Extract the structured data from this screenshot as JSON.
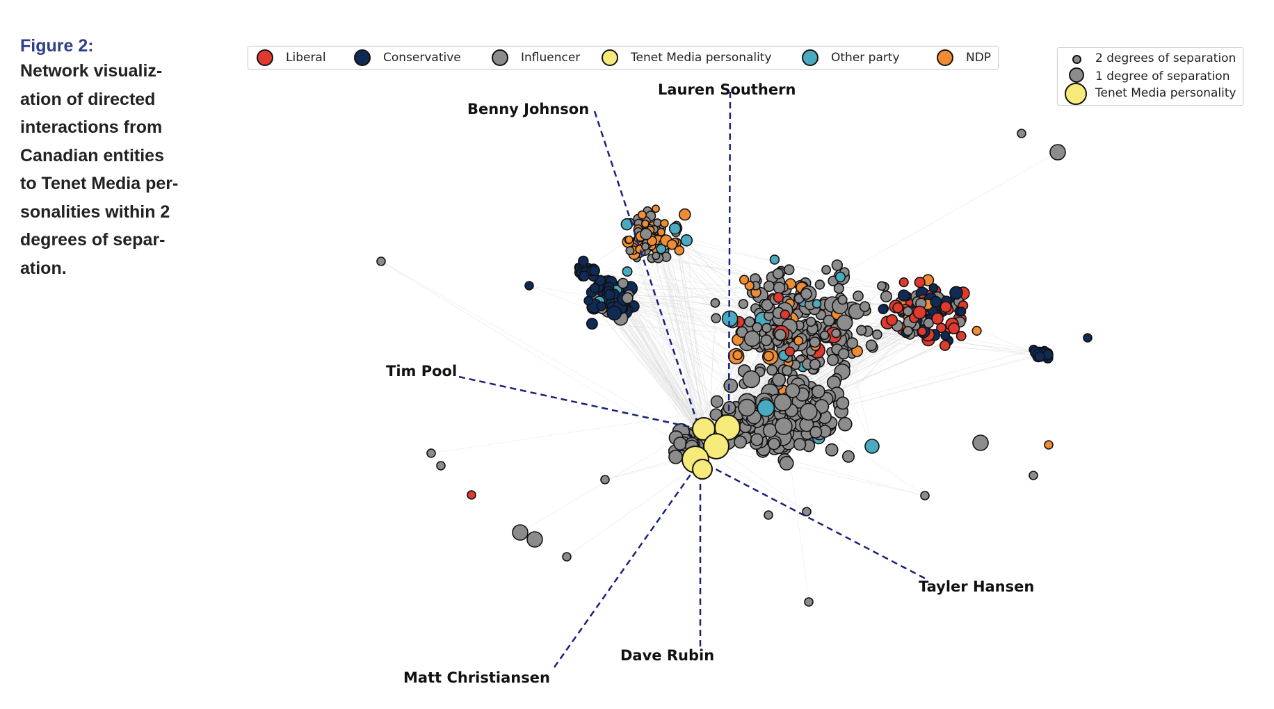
{
  "caption": {
    "label": "Figure 2:",
    "text": "Network visualiz-\nation of directed\ninteractions from\nCanadian entities\nto Tenet Media per-\nsonalities within 2\ndegrees of separ-\nation."
  },
  "legend_categories": [
    {
      "label": "Liberal",
      "color": "#e03a2f"
    },
    {
      "label": "Conservative",
      "color": "#0f2a55"
    },
    {
      "label": "Influencer",
      "color": "#8c8c8c"
    },
    {
      "label": "Tenet Media personality",
      "color": "#f5ea7a"
    },
    {
      "label": "Other party",
      "color": "#4aaac0"
    },
    {
      "label": "NDP",
      "color": "#ef8c34"
    }
  ],
  "legend_sizes": [
    {
      "label": "2 degrees of separation",
      "color": "#8c8c8c"
    },
    {
      "label": "1 degree of separation",
      "color": "#8c8c8c"
    },
    {
      "label": "Tenet Media personality",
      "color": "#f5ea7a"
    }
  ],
  "personalities": [
    {
      "name": "Benny Johnson"
    },
    {
      "name": "Lauren Southern"
    },
    {
      "name": "Tim Pool"
    },
    {
      "name": "Tayler Hansen"
    },
    {
      "name": "Dave Rubin"
    },
    {
      "name": "Matt Christiansen"
    }
  ],
  "colors": {
    "edge": "#d6d6d6",
    "dashed_line": "#1a1f7a",
    "node_stroke": "#111111"
  }
}
